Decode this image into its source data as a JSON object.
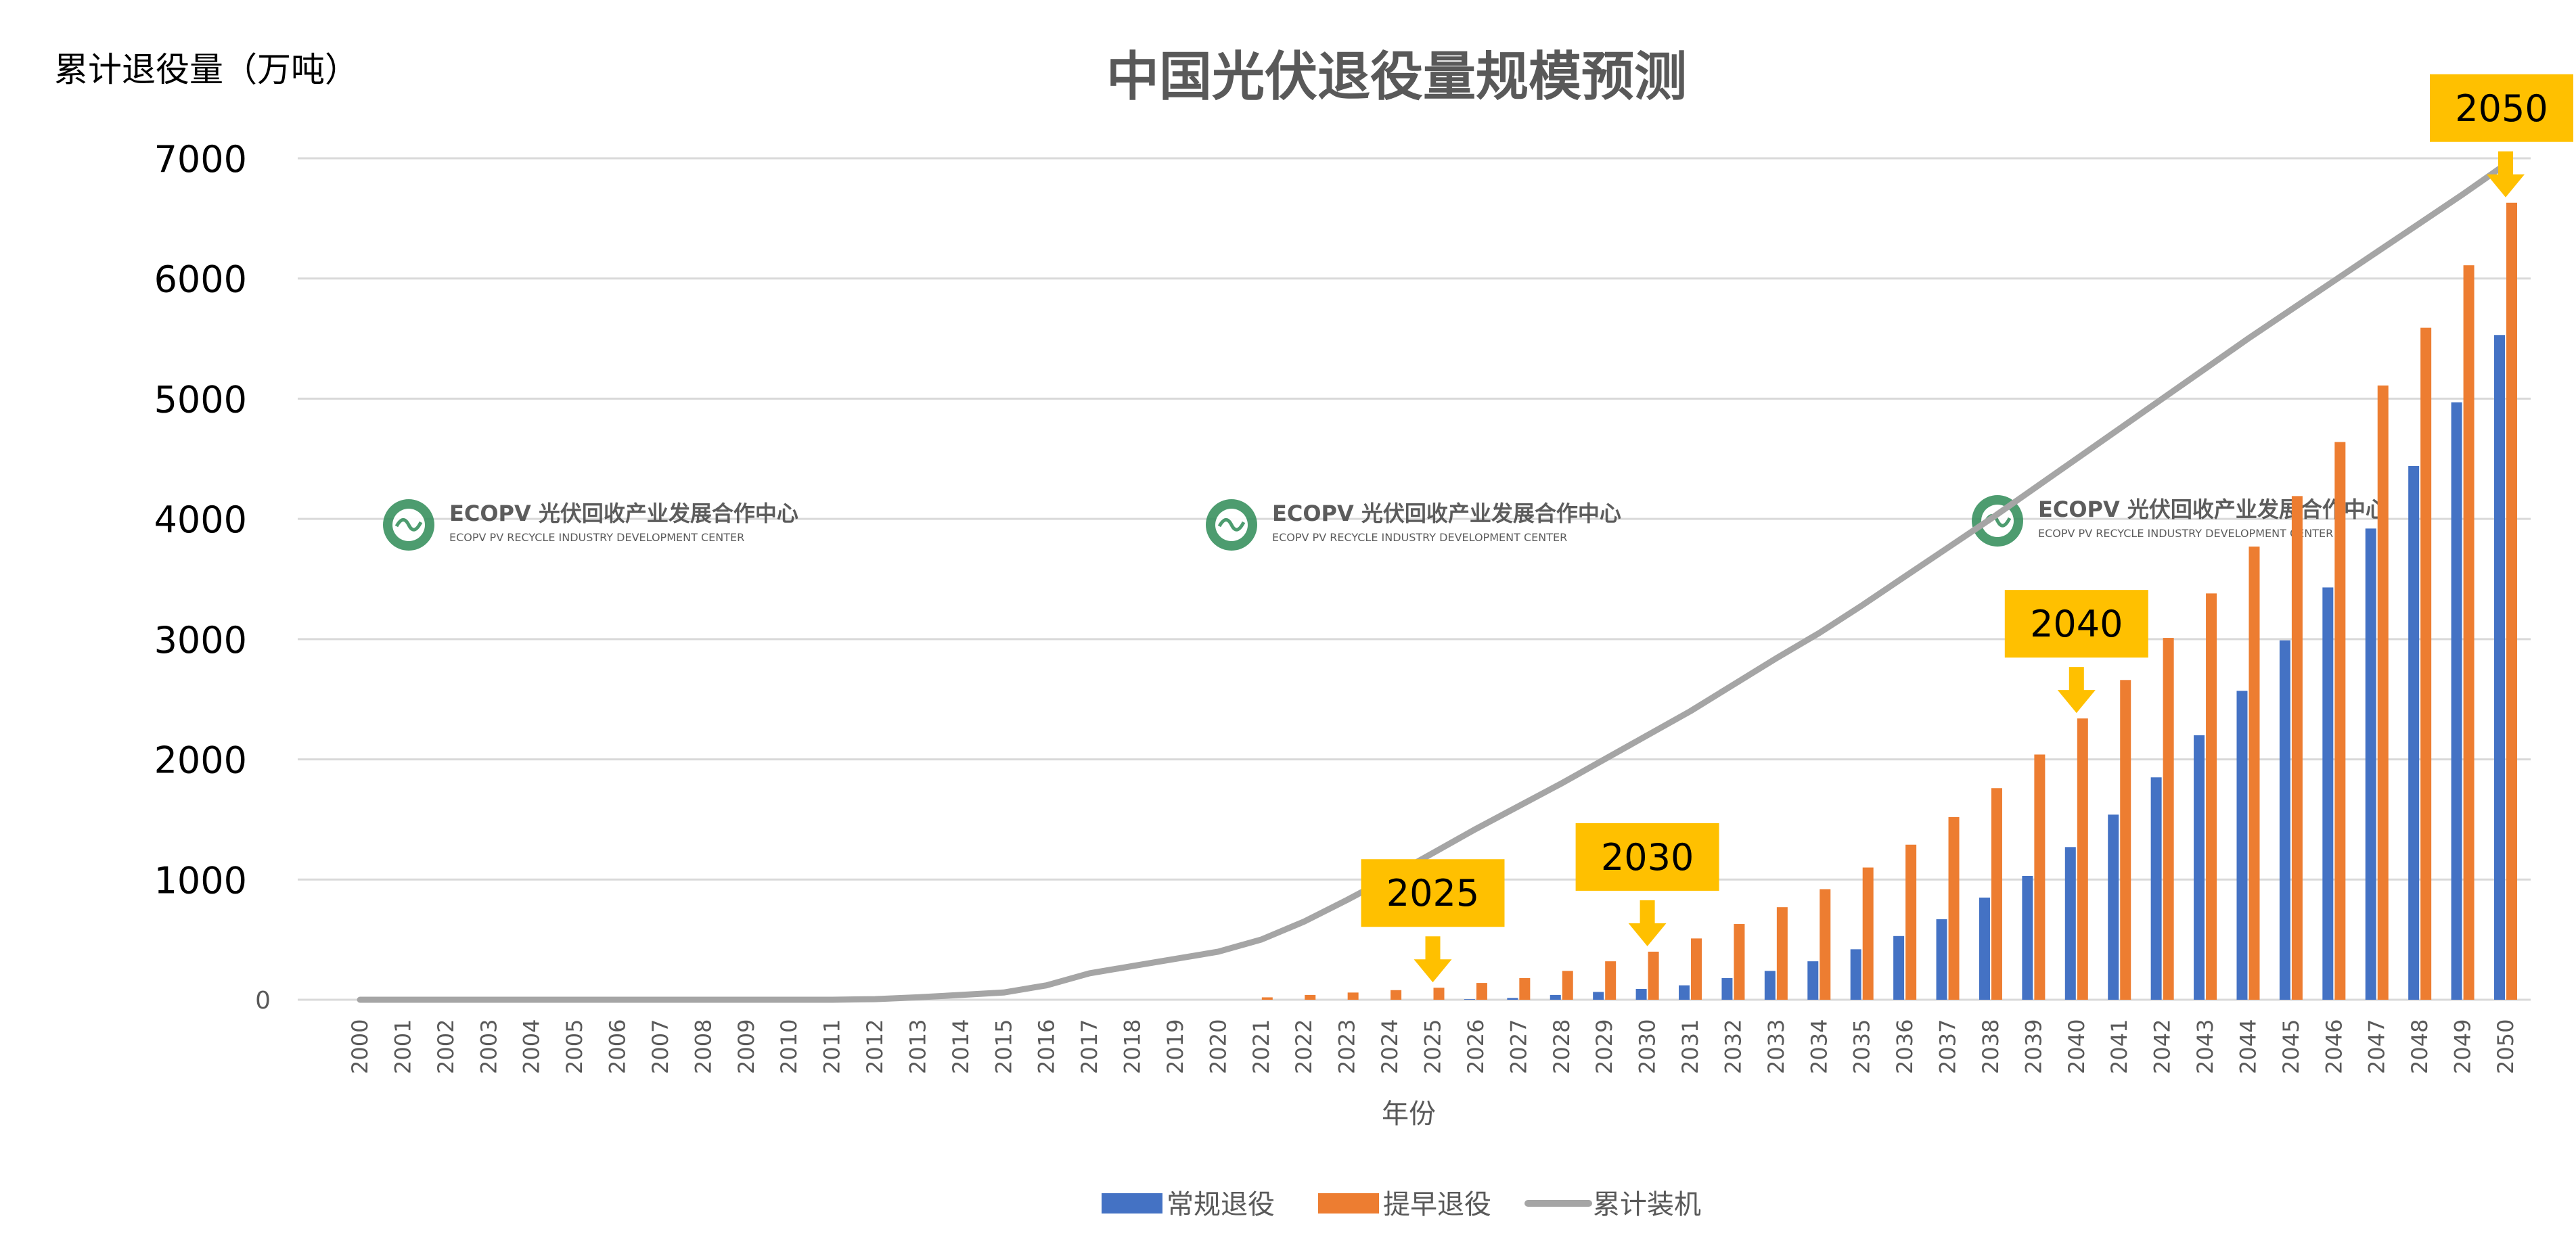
{
  "chart_data": {
    "type": "bar",
    "title": "中国光伏退役量规模预测",
    "ylabel": "累计退役量（万吨）",
    "xlabel": "年份",
    "ylim": [
      0,
      7000
    ],
    "yticks": [
      0,
      1000,
      2000,
      3000,
      4000,
      5000,
      6000,
      7000
    ],
    "grid": true,
    "legend_position": "bottom",
    "categories": [
      "2000",
      "2001",
      "2002",
      "2003",
      "2004",
      "2005",
      "2006",
      "2007",
      "2008",
      "2009",
      "2010",
      "2011",
      "2012",
      "2013",
      "2014",
      "2015",
      "2016",
      "2017",
      "2018",
      "2019",
      "2020",
      "2021",
      "2022",
      "2023",
      "2024",
      "2025",
      "2026",
      "2027",
      "2028",
      "2029",
      "2030",
      "2031",
      "2032",
      "2033",
      "2034",
      "2035",
      "2036",
      "2037",
      "2038",
      "2039",
      "2040",
      "2041",
      "2042",
      "2043",
      "2044",
      "2045",
      "2046",
      "2047",
      "2048",
      "2049",
      "2050"
    ],
    "series": [
      {
        "name": "常规退役",
        "type": "bar",
        "color": "#4472C4",
        "values": [
          0,
          0,
          0,
          0,
          0,
          0,
          0,
          0,
          0,
          0,
          0,
          0,
          0,
          0,
          0,
          0,
          0,
          0,
          0,
          0,
          0,
          0,
          0,
          0,
          0,
          0,
          5,
          15,
          40,
          65,
          90,
          120,
          180,
          240,
          320,
          420,
          530,
          670,
          850,
          1030,
          1270,
          1540,
          1850,
          2200,
          2570,
          2990,
          3430,
          3920,
          4440,
          4970,
          5530
        ]
      },
      {
        "name": "提早退役",
        "type": "bar",
        "color": "#ED7D31",
        "values": [
          0,
          0,
          0,
          0,
          0,
          0,
          0,
          0,
          0,
          0,
          0,
          0,
          0,
          0,
          0,
          0,
          0,
          0,
          0,
          0,
          0,
          20,
          40,
          60,
          80,
          100,
          140,
          180,
          240,
          320,
          400,
          510,
          630,
          770,
          920,
          1100,
          1290,
          1520,
          1760,
          2040,
          2340,
          2660,
          3010,
          3380,
          3770,
          4190,
          4640,
          5110,
          5590,
          6110,
          6630
        ]
      },
      {
        "name": "累计装机",
        "type": "line",
        "color": "#A5A5A5",
        "values": [
          0,
          0,
          0,
          0,
          0,
          0,
          0,
          0,
          0,
          0,
          0,
          0,
          5,
          20,
          40,
          60,
          120,
          220,
          280,
          340,
          400,
          500,
          650,
          830,
          1020,
          1220,
          1420,
          1610,
          1800,
          2000,
          2200,
          2400,
          2620,
          2840,
          3050,
          3280,
          3520,
          3760,
          4000,
          4250,
          4500,
          4750,
          5000,
          5250,
          5500,
          5740,
          5980,
          6220,
          6460,
          6700,
          6950
        ]
      }
    ],
    "annotations": [
      {
        "label": "2025",
        "year": "2025"
      },
      {
        "label": "2030",
        "year": "2030"
      },
      {
        "label": "2040",
        "year": "2040"
      },
      {
        "label": "2050",
        "year": "2050"
      }
    ],
    "watermark": {
      "name": "ECOPV 光伏回收产业发展合作中心",
      "sub": "ECOPV PV RECYCLE INDUSTRY  DEVELOPMENT CENTER"
    },
    "accent_color": "#FFC000"
  }
}
